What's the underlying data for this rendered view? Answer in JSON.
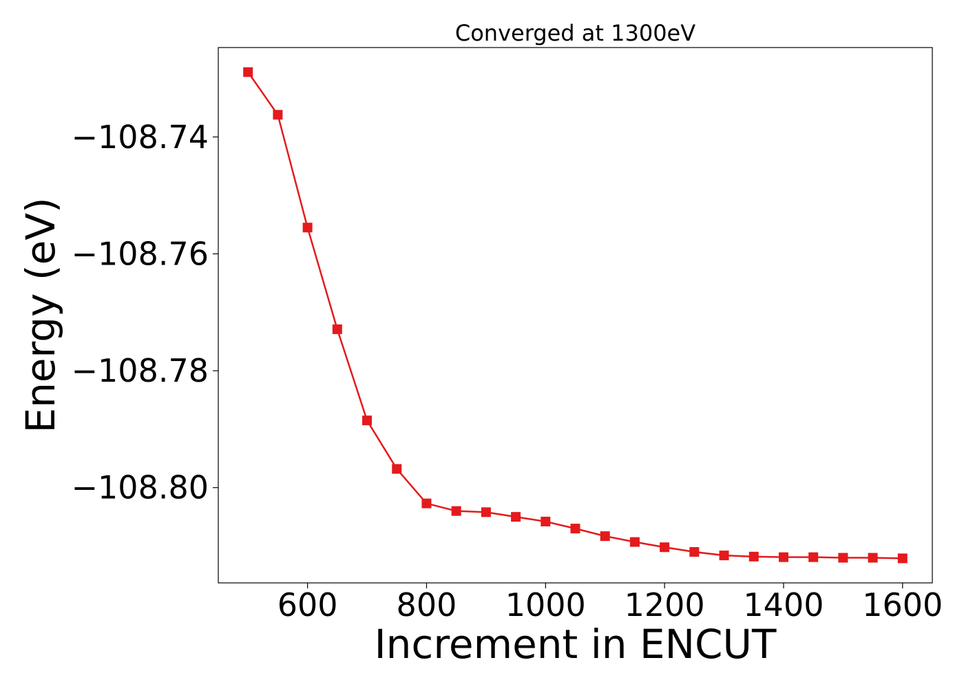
{
  "chart_data": {
    "type": "line",
    "title": "Converged at 1300eV",
    "xlabel": "Increment in ENCUT",
    "ylabel": "Energy (eV)",
    "xlim": [
      450,
      1650
    ],
    "ylim": [
      -108.8163,
      -108.7247
    ],
    "x_ticks": [
      600,
      800,
      1000,
      1200,
      1400,
      1600
    ],
    "x_tick_labels": [
      "600",
      "800",
      "1000",
      "1200",
      "1400",
      "1600"
    ],
    "y_ticks": [
      -108.74,
      -108.76,
      -108.78,
      -108.8
    ],
    "y_tick_labels": [
      "−108.74",
      "−108.76",
      "−108.78",
      "−108.80"
    ],
    "grid": false,
    "legend": "none",
    "series": [
      {
        "color": "#e41a1c",
        "marker": "square",
        "x": [
          500,
          550,
          600,
          650,
          700,
          750,
          800,
          850,
          900,
          950,
          1000,
          1050,
          1100,
          1150,
          1200,
          1250,
          1300,
          1350,
          1400,
          1450,
          1500,
          1550,
          1600
        ],
        "y": [
          -108.7289,
          -108.7362,
          -108.7555,
          -108.7729,
          -108.7885,
          -108.7968,
          -108.8027,
          -108.804,
          -108.8042,
          -108.805,
          -108.8058,
          -108.807,
          -108.8083,
          -108.8093,
          -108.8102,
          -108.811,
          -108.8116,
          -108.8118,
          -108.8119,
          -108.8119,
          -108.812,
          -108.812,
          -108.8121
        ]
      }
    ]
  }
}
